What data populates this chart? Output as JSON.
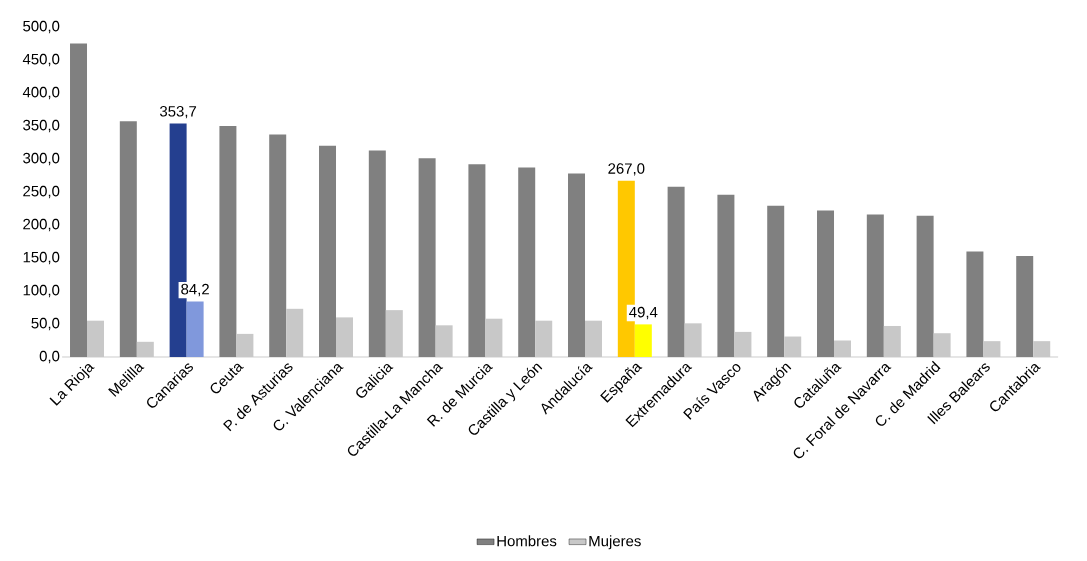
{
  "chart_data": {
    "type": "bar",
    "categories": [
      "La Rioja",
      "Melilla",
      "Canarias",
      "Ceuta",
      "P. de Asturias",
      "C. Valenciana",
      "Galicia",
      "Castilla-La Mancha",
      "R. de Murcia",
      "Castilla y León",
      "Andalucía",
      "España",
      "Extremadura",
      "País Vasco",
      "Aragón",
      "Cataluña",
      "C. Foral de Navarra",
      "C. de Madrid",
      "Illes Balears",
      "Cantabria"
    ],
    "series": [
      {
        "name": "Hombres",
        "color": "#808080",
        "colors": [
          "#808080",
          "#808080",
          "#243f8f",
          "#808080",
          "#808080",
          "#808080",
          "#808080",
          "#808080",
          "#808080",
          "#808080",
          "#808080",
          "#ffc800",
          "#808080",
          "#808080",
          "#808080",
          "#808080",
          "#808080",
          "#808080",
          "#808080",
          "#808080"
        ],
        "values": [
          475,
          357,
          353.7,
          350,
          337,
          320,
          313,
          301,
          292,
          287,
          278,
          267.0,
          258,
          246,
          229,
          222,
          216,
          214,
          160,
          153
        ],
        "value_labels": [
          null,
          null,
          "353,7",
          null,
          null,
          null,
          null,
          null,
          null,
          null,
          null,
          "267,0",
          null,
          null,
          null,
          null,
          null,
          null,
          null,
          null
        ]
      },
      {
        "name": "Mujeres",
        "color": "#c8c8c8",
        "colors": [
          "#c8c8c8",
          "#c8c8c8",
          "#8098dc",
          "#c8c8c8",
          "#c8c8c8",
          "#c8c8c8",
          "#c8c8c8",
          "#c8c8c8",
          "#c8c8c8",
          "#c8c8c8",
          "#c8c8c8",
          "#ffff00",
          "#c8c8c8",
          "#c8c8c8",
          "#c8c8c8",
          "#c8c8c8",
          "#c8c8c8",
          "#c8c8c8",
          "#c8c8c8",
          "#c8c8c8"
        ],
        "values": [
          55,
          23,
          84.2,
          35,
          73,
          60,
          71,
          48,
          58,
          55,
          55,
          49.4,
          51,
          38,
          31,
          25,
          47,
          36,
          24,
          24
        ],
        "value_labels": [
          null,
          null,
          "84,2",
          null,
          null,
          null,
          null,
          null,
          null,
          null,
          null,
          "49,4",
          null,
          null,
          null,
          null,
          null,
          null,
          null,
          null
        ]
      }
    ],
    "ylim": [
      0,
      500
    ],
    "yticks": [
      {
        "value": 0,
        "label": "0,0"
      },
      {
        "value": 50,
        "label": "50,0"
      },
      {
        "value": 100,
        "label": "100,0"
      },
      {
        "value": 150,
        "label": "150,0"
      },
      {
        "value": 200,
        "label": "200,0"
      },
      {
        "value": 250,
        "label": "250,0"
      },
      {
        "value": 300,
        "label": "300,0"
      },
      {
        "value": 350,
        "label": "350,0"
      },
      {
        "value": 400,
        "label": "400,0"
      },
      {
        "value": 450,
        "label": "450,0"
      },
      {
        "value": 500,
        "label": "500,0"
      }
    ],
    "legend": "bottom"
  }
}
